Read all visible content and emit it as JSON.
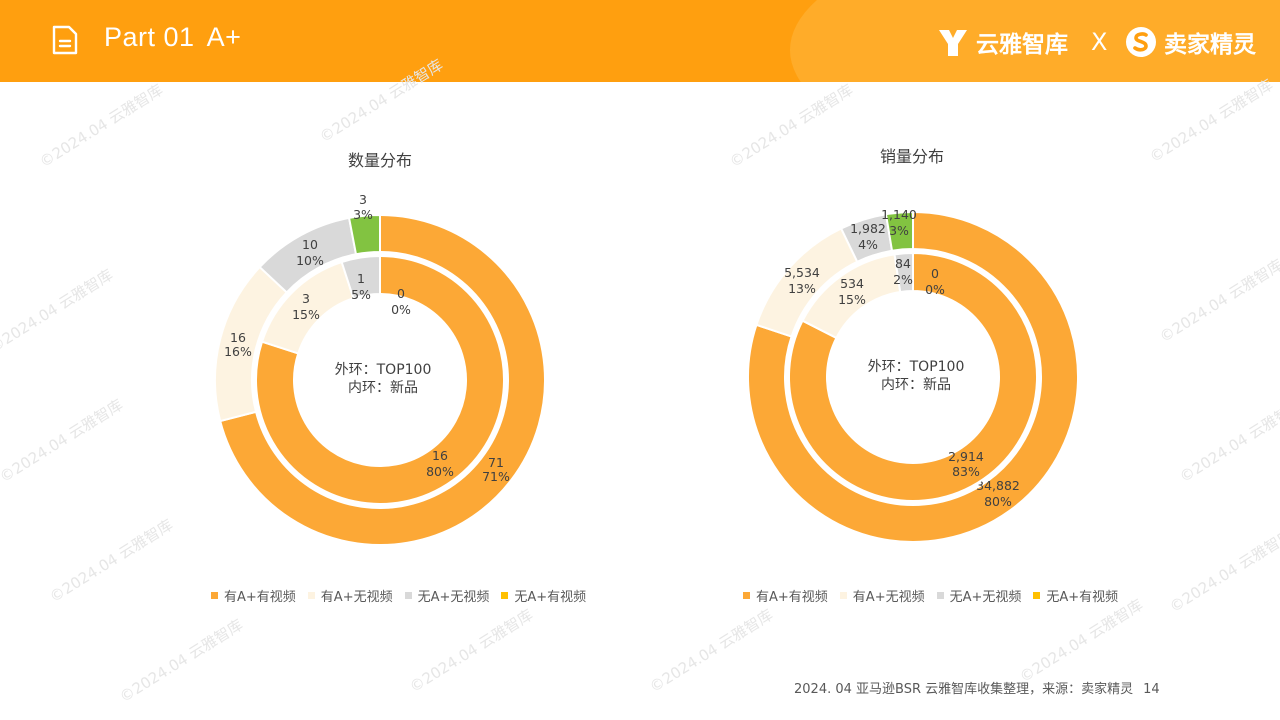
{
  "header": {
    "part_label": "Part 01",
    "title": "A+",
    "brand_left": "云雅智库",
    "brand_sep": "X",
    "brand_right": "卖家精灵"
  },
  "watermark_text": "©2024.04 云雅智库",
  "colors": {
    "header": "#ff9f0f",
    "series": [
      "#fca836",
      "#fdf3e1",
      "#d9d9d9",
      "#82c341"
    ],
    "legend_swatches": [
      "#fca836",
      "#fdf3e1",
      "#d9d9d9",
      "#ffc000"
    ]
  },
  "chart_data": [
    {
      "type": "donut",
      "title": "数量分布",
      "center_label_1": "外环：TOP100",
      "center_label_2": "内环：新品",
      "legend": [
        "有A+有视频",
        "有A+无视频",
        "无A+无视频",
        "无A+有视频"
      ],
      "outer": {
        "name": "TOP100",
        "values": [
          71,
          16,
          10,
          3
        ],
        "labels": [
          [
            "71",
            "71%"
          ],
          [
            "16",
            "16%"
          ],
          [
            "10",
            "10%"
          ],
          [
            "3",
            "3%"
          ]
        ]
      },
      "inner": {
        "name": "新品",
        "values": [
          16,
          3,
          1,
          0
        ],
        "labels": [
          [
            "16",
            "80%"
          ],
          [
            "3",
            "15%"
          ],
          [
            "1",
            "5%"
          ],
          [
            "0",
            "0%"
          ]
        ]
      }
    },
    {
      "type": "donut",
      "title": "销量分布",
      "center_label_1": "外环：TOP100",
      "center_label_2": "内环：新品",
      "legend": [
        "有A+有视频",
        "有A+无视频",
        "无A+无视频",
        "无A+有视频"
      ],
      "outer": {
        "name": "TOP100",
        "values": [
          34882,
          5534,
          1982,
          1140
        ],
        "labels": [
          [
            "34,882",
            "80%"
          ],
          [
            "5,534",
            "13%"
          ],
          [
            "1,982",
            "4%"
          ],
          [
            "1,140",
            "3%"
          ]
        ]
      },
      "inner": {
        "name": "新品",
        "values": [
          2914,
          534,
          84,
          0
        ],
        "labels": [
          [
            "2,914",
            "83%"
          ],
          [
            "534",
            "15%"
          ],
          [
            "84",
            "2%"
          ],
          [
            "0",
            "0%"
          ]
        ]
      }
    }
  ],
  "footer": {
    "source": "2024. 04 亚马逊BSR 云雅智库收集整理，来源：卖家精灵",
    "page": "14"
  }
}
